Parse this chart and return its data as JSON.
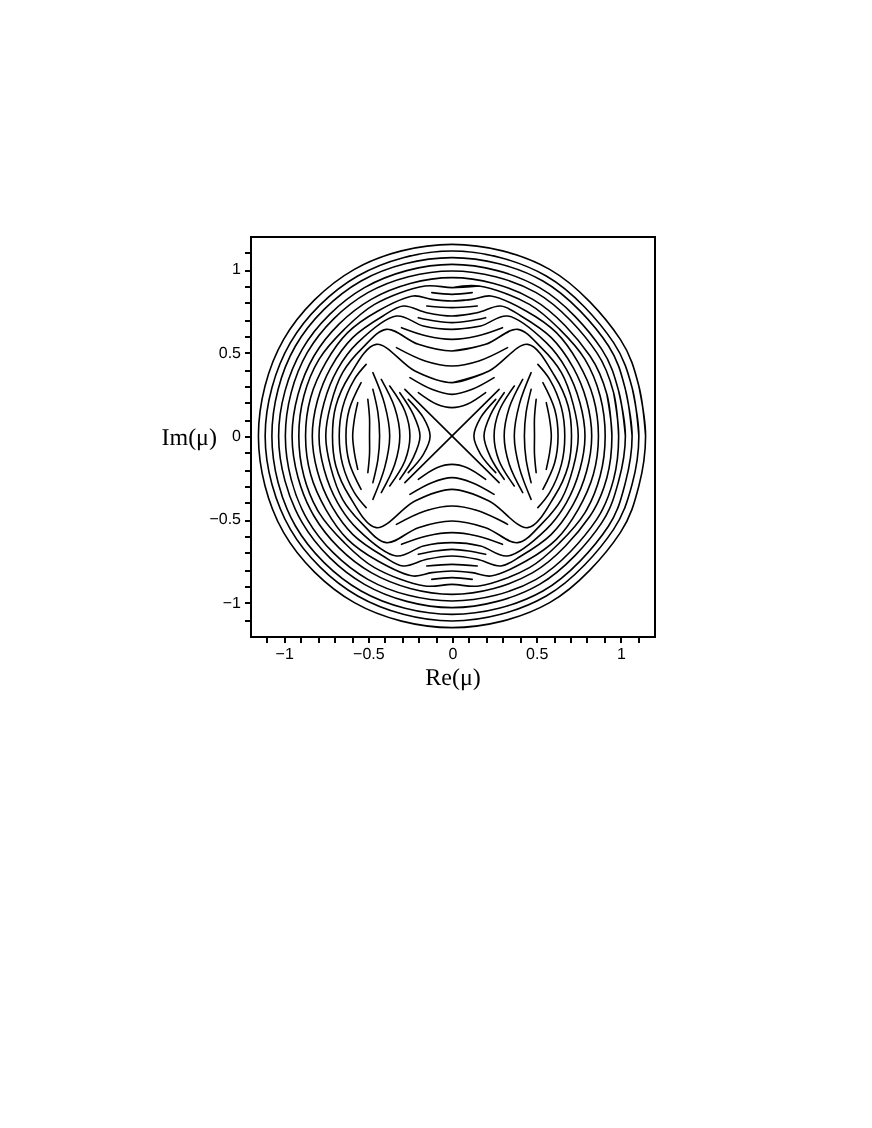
{
  "chart_data": {
    "type": "line",
    "xlabel": "Re(μ)",
    "ylabel": "Im(μ)",
    "xlim": [
      -1.2,
      1.2
    ],
    "ylim": [
      -1.2,
      1.2
    ],
    "xticks": [
      {
        "value": -1.1,
        "label": null
      },
      -1,
      {
        "value": -0.9,
        "label": null
      },
      {
        "value": -0.8,
        "label": null
      },
      {
        "value": -0.7,
        "label": null
      },
      {
        "value": -0.6,
        "label": null
      },
      -0.5,
      {
        "value": -0.4,
        "label": null
      },
      {
        "value": -0.3,
        "label": null
      },
      {
        "value": -0.2,
        "label": null
      },
      {
        "value": -0.1,
        "label": null
      },
      0,
      {
        "value": 0.1,
        "label": null
      },
      {
        "value": 0.2,
        "label": null
      },
      {
        "value": 0.3,
        "label": null
      },
      {
        "value": 0.4,
        "label": null
      },
      0.5,
      {
        "value": 0.6,
        "label": null
      },
      {
        "value": 0.7,
        "label": null
      },
      {
        "value": 0.8,
        "label": null
      },
      {
        "value": 0.9,
        "label": null
      },
      1,
      {
        "value": 1.1,
        "label": null
      }
    ],
    "yticks": [
      {
        "value": -1.1,
        "label": null
      },
      -1,
      {
        "value": -0.9,
        "label": null
      },
      {
        "value": -0.8,
        "label": null
      },
      {
        "value": -0.7,
        "label": null
      },
      {
        "value": -0.6,
        "label": null
      },
      -0.5,
      {
        "value": -0.4,
        "label": null
      },
      {
        "value": -0.3,
        "label": null
      },
      {
        "value": -0.2,
        "label": null
      },
      {
        "value": -0.1,
        "label": null
      },
      0,
      {
        "value": 0.1,
        "label": null
      },
      {
        "value": 0.2,
        "label": null
      },
      {
        "value": 0.3,
        "label": null
      },
      {
        "value": 0.4,
        "label": null
      },
      0.5,
      {
        "value": 0.6,
        "label": null
      },
      {
        "value": 0.7,
        "label": null
      },
      {
        "value": 0.8,
        "label": null
      },
      {
        "value": 0.9,
        "label": null
      },
      1,
      {
        "value": 1.1,
        "label": null
      }
    ],
    "series": [
      {
        "color": "#000000",
        "x": [
          0.95,
          0.92,
          0.82,
          0.48,
          0,
          -0.48,
          -0.82,
          -0.95,
          -0.82,
          -0.48,
          0,
          0.48,
          0.82,
          0.92,
          0.95,
          0.92
        ],
        "values": [
          0,
          0.25,
          0.48,
          0.82,
          0.95,
          0.82,
          0.48,
          0,
          -0.48,
          -0.82,
          -0.95,
          -0.82,
          -0.48,
          -0.25,
          0,
          0.25
        ]
      },
      {
        "color": "#000000",
        "x": [
          0.99,
          0.96,
          0.86,
          0.5,
          0,
          -0.5,
          -0.86,
          -0.99,
          -0.86,
          -0.5,
          0,
          0.5,
          0.86,
          0.96,
          0.99,
          0.96
        ],
        "values": [
          0,
          0.26,
          0.5,
          0.86,
          0.99,
          0.86,
          0.5,
          0,
          -0.5,
          -0.86,
          -0.99,
          -0.86,
          -0.5,
          -0.26,
          0,
          0.26
        ]
      },
      {
        "color": "#000000",
        "x": [
          1.03,
          0.99,
          0.89,
          0.52,
          0,
          -0.52,
          -0.89,
          -1.03,
          -0.89,
          -0.52,
          0,
          0.52,
          0.89,
          0.99,
          1.03,
          0.99
        ],
        "values": [
          0,
          0.27,
          0.52,
          0.89,
          1.03,
          0.89,
          0.52,
          0,
          -0.52,
          -0.89,
          -1.03,
          -0.89,
          -0.52,
          -0.27,
          0,
          0.27
        ]
      },
      {
        "color": "#000000",
        "x": [
          1.07,
          1.03,
          0.93,
          0.54,
          0,
          -0.54,
          -0.93,
          -1.07,
          -0.93,
          -0.54,
          0,
          0.54,
          0.93,
          1.03,
          1.07,
          1.03
        ],
        "values": [
          0,
          0.28,
          0.54,
          0.93,
          1.07,
          0.93,
          0.54,
          0,
          -0.54,
          -0.93,
          -1.07,
          -0.93,
          -0.54,
          -0.28,
          0,
          0.28
        ]
      },
      {
        "color": "#000000",
        "x": [
          1.11,
          1.07,
          0.96,
          0.56,
          0,
          -0.56,
          -0.96,
          -1.11,
          -0.96,
          -0.56,
          0,
          0.56,
          0.96,
          1.07,
          1.11,
          1.07
        ],
        "values": [
          0,
          0.29,
          0.56,
          0.96,
          1.11,
          0.96,
          0.56,
          0,
          -0.56,
          -0.96,
          -1.11,
          -0.96,
          -0.56,
          -0.29,
          0,
          0.29
        ]
      },
      {
        "color": "#000000",
        "x": [
          1.15,
          1.11,
          1,
          0.58,
          0,
          -0.58,
          -1,
          -1.15,
          -1,
          -0.58,
          0,
          0.58,
          1,
          1.11,
          1.15,
          1.11
        ],
        "values": [
          0,
          0.3,
          0.58,
          1,
          1.15,
          1,
          0.58,
          0,
          -0.58,
          -1,
          -1.15,
          -1,
          -0.58,
          -0.3,
          0,
          0.3
        ]
      },
      {
        "color": "#000000",
        "x": [
          0,
          0.16,
          0.46,
          0.64,
          0.79,
          0.88,
          0.91,
          0.88,
          0.79,
          0.64,
          0.46,
          0.16,
          0,
          -0.16,
          -0.46,
          -0.64,
          -0.79,
          -0.88,
          -0.91,
          -0.88,
          -0.79,
          -0.64,
          -0.46,
          -0.16,
          0,
          0.16
        ],
        "values": [
          0.89,
          0.9,
          0.79,
          0.64,
          0.46,
          0.24,
          0,
          -0.24,
          -0.46,
          -0.64,
          -0.79,
          -0.9,
          -0.89,
          -0.9,
          -0.79,
          -0.64,
          -0.46,
          -0.24,
          0,
          0.24,
          0.46,
          0.64,
          0.79,
          0.9,
          0.89,
          0.9
        ]
      },
      {
        "color": "#000000",
        "x": [
          0,
          0.12,
          0.23,
          0.44,
          0.62,
          0.75,
          0.84,
          0.87,
          0.84,
          0.75,
          0.62,
          0.44,
          0.23,
          0.12,
          0,
          -0.12,
          -0.23,
          -0.44,
          -0.62,
          -0.75,
          -0.84,
          -0.87,
          -0.84,
          -0.75,
          -0.62,
          -0.44,
          -0.23,
          -0.12,
          0,
          0.12
        ],
        "values": [
          0.81,
          0.82,
          0.84,
          0.75,
          0.62,
          0.44,
          0.23,
          0,
          -0.23,
          -0.44,
          -0.62,
          -0.75,
          -0.84,
          -0.82,
          -0.81,
          -0.82,
          -0.84,
          -0.75,
          -0.62,
          -0.44,
          -0.23,
          0,
          0.23,
          0.44,
          0.62,
          0.75,
          0.84,
          0.82,
          0.81,
          0.82
        ]
      },
      {
        "color": "#000000",
        "x": [
          0,
          0.15,
          0.29,
          0.41,
          0.59,
          0.72,
          0.8,
          0.83,
          0.8,
          0.72,
          0.59,
          0.41,
          0.29,
          0.15,
          0,
          -0.15,
          -0.29,
          -0.41,
          -0.59,
          -0.72,
          -0.8,
          -0.83,
          -0.8,
          -0.72,
          -0.59,
          -0.41,
          -0.29,
          -0.15,
          0,
          0.15
        ],
        "values": [
          0.72,
          0.74,
          0.78,
          0.72,
          0.59,
          0.41,
          0.21,
          0,
          -0.21,
          -0.41,
          -0.59,
          -0.72,
          -0.78,
          -0.74,
          -0.72,
          -0.74,
          -0.78,
          -0.72,
          -0.59,
          -0.41,
          -0.21,
          0,
          0.21,
          0.41,
          0.59,
          0.72,
          0.78,
          0.74,
          0.72,
          0.74
        ]
      },
      {
        "color": "#000000",
        "x": [
          0,
          0.17,
          0.33,
          0.56,
          0.68,
          0.76,
          0.79,
          0.76,
          0.68,
          0.56,
          0.33,
          0.17,
          0,
          -0.17,
          -0.33,
          -0.56,
          -0.68,
          -0.76,
          -0.79,
          -0.76,
          -0.68,
          -0.56,
          -0.33,
          -0.17,
          0,
          0.17
        ],
        "values": [
          0.64,
          0.66,
          0.72,
          0.56,
          0.4,
          0.2,
          0,
          -0.2,
          -0.4,
          -0.56,
          -0.72,
          -0.66,
          -0.64,
          -0.66,
          -0.72,
          -0.56,
          -0.4,
          -0.2,
          0,
          0.2,
          0.4,
          0.56,
          0.72,
          0.66,
          0.64,
          0.66
        ]
      },
      {
        "color": "#000000",
        "x": [
          0,
          0.2,
          0.39,
          0.53,
          0.65,
          0.72,
          0.75,
          0.72,
          0.65,
          0.53,
          0.39,
          0.2,
          0,
          -0.2,
          -0.39,
          -0.53,
          -0.65,
          -0.72,
          -0.75,
          -0.72,
          -0.65,
          -0.53,
          -0.39,
          -0.2,
          0,
          0.2
        ],
        "values": [
          0.51,
          0.55,
          0.64,
          0.53,
          0.38,
          0.19,
          0,
          -0.19,
          -0.38,
          -0.53,
          -0.64,
          -0.55,
          -0.51,
          -0.55,
          -0.64,
          -0.53,
          -0.38,
          -0.19,
          0,
          0.19,
          0.38,
          0.53,
          0.64,
          0.55,
          0.51,
          0.55
        ]
      },
      {
        "color": "#000000",
        "x": [
          0,
          0.22,
          0.45,
          0.61,
          0.69,
          0.71,
          0.69,
          0.61,
          0.45,
          0.22,
          0,
          -0.22,
          -0.45,
          -0.61,
          -0.69,
          -0.71,
          -0.69,
          -0.61,
          -0.45,
          -0.22,
          0,
          0.22
        ],
        "values": [
          0.32,
          0.39,
          0.55,
          0.36,
          0.18,
          0,
          -0.18,
          -0.36,
          -0.55,
          -0.39,
          -0.32,
          -0.39,
          -0.55,
          -0.36,
          -0.18,
          0,
          0.18,
          0.36,
          0.55,
          0.39,
          0.32,
          0.39
        ]
      },
      {
        "color": "#000000",
        "x": [
          0.51,
          0.58,
          0.65,
          0.67,
          0.65,
          0.58,
          0.51
        ],
        "values": [
          -0.43,
          -0.34,
          -0.17,
          0,
          0.17,
          0.34,
          0.43
        ]
      },
      {
        "color": "#000000",
        "x": [
          -0.51,
          -0.58,
          -0.65,
          -0.67,
          -0.65,
          -0.58,
          -0.51
        ],
        "values": [
          -0.43,
          -0.34,
          -0.17,
          0,
          0.17,
          0.34,
          0.43
        ]
      },
      {
        "color": "#000000",
        "x": [
          0.54,
          0.61,
          0.63,
          0.61,
          0.54
        ],
        "values": [
          -0.32,
          -0.16,
          0,
          0.16,
          0.32
        ]
      },
      {
        "color": "#000000",
        "x": [
          -0.54,
          -0.61,
          -0.63,
          -0.61,
          -0.54
        ],
        "values": [
          -0.32,
          -0.16,
          0,
          0.16,
          0.32
        ]
      },
      {
        "color": "#000000",
        "x": [
          0.56,
          0.58,
          0.59,
          0.58,
          0.56
        ],
        "values": [
          -0.2,
          -0.1,
          0,
          0.1,
          0.2
        ]
      },
      {
        "color": "#000000",
        "x": [
          -0.56,
          -0.58,
          -0.59,
          -0.58,
          -0.56
        ],
        "values": [
          -0.2,
          -0.1,
          0,
          0.1,
          0.2
        ]
      },
      {
        "color": "#000000",
        "x": [
          -0.2,
          -0.09,
          0,
          0.09,
          0.2
        ],
        "values": [
          0.26,
          0.19,
          0.17,
          0.19,
          0.26
        ]
      },
      {
        "color": "#000000",
        "x": [
          -0.25,
          -0.12,
          0,
          0.12,
          0.25
        ],
        "values": [
          0.35,
          0.28,
          0.25,
          0.28,
          0.35
        ]
      },
      {
        "color": "#000000",
        "x": [
          -0.33,
          -0.16,
          0,
          0.16,
          0.33
        ],
        "values": [
          0.53,
          0.45,
          0.42,
          0.45,
          0.53
        ]
      },
      {
        "color": "#000000",
        "x": [
          -0.3,
          -0.15,
          0,
          0.15,
          0.3
        ],
        "values": [
          0.65,
          0.6,
          0.58,
          0.6,
          0.65
        ]
      },
      {
        "color": "#000000",
        "x": [
          -0.2,
          -0.1,
          0,
          0.1,
          0.2
        ],
        "values": [
          0.71,
          0.69,
          0.68,
          0.69,
          0.71
        ]
      },
      {
        "color": "#000000",
        "x": [
          -0.15,
          0,
          0.15
        ],
        "values": [
          0.78,
          0.77,
          0.78
        ]
      },
      {
        "color": "#000000",
        "x": [
          -0.12,
          0,
          0.12
        ],
        "values": [
          0.86,
          0.85,
          0.86
        ]
      },
      {
        "color": "#000000",
        "x": [
          -0.2,
          -0.09,
          0,
          0.09,
          0.2
        ],
        "values": [
          -0.26,
          -0.19,
          -0.17,
          -0.19,
          -0.26
        ]
      },
      {
        "color": "#000000",
        "x": [
          -0.25,
          -0.12,
          0,
          0.12,
          0.25
        ],
        "values": [
          -0.35,
          -0.28,
          -0.25,
          -0.28,
          -0.35
        ]
      },
      {
        "color": "#000000",
        "x": [
          -0.33,
          -0.16,
          0,
          0.16,
          0.33
        ],
        "values": [
          -0.53,
          -0.45,
          -0.42,
          -0.45,
          -0.53
        ]
      },
      {
        "color": "#000000",
        "x": [
          -0.3,
          -0.15,
          0,
          0.15,
          0.3
        ],
        "values": [
          -0.65,
          -0.6,
          -0.58,
          -0.6,
          -0.65
        ]
      },
      {
        "color": "#000000",
        "x": [
          -0.2,
          -0.1,
          0,
          0.1,
          0.2
        ],
        "values": [
          -0.71,
          -0.69,
          -0.68,
          -0.69,
          -0.71
        ]
      },
      {
        "color": "#000000",
        "x": [
          -0.15,
          0,
          0.15
        ],
        "values": [
          -0.78,
          -0.77,
          -0.78
        ]
      },
      {
        "color": "#000000",
        "x": [
          -0.12,
          0,
          0.12
        ],
        "values": [
          -0.86,
          -0.85,
          -0.86
        ]
      },
      {
        "color": "#000000",
        "x": [
          -0.26,
          -0.17,
          -0.13,
          -0.17,
          -0.26
        ],
        "values": [
          -0.22,
          -0.11,
          0,
          0.11,
          0.22
        ]
      },
      {
        "color": "#000000",
        "x": [
          -0.31,
          -0.23,
          -0.19,
          -0.23,
          -0.31
        ],
        "values": [
          -0.26,
          -0.13,
          0,
          0.13,
          0.26
        ]
      },
      {
        "color": "#000000",
        "x": [
          -0.37,
          -0.28,
          -0.25,
          -0.28,
          -0.37
        ],
        "values": [
          -0.3,
          -0.15,
          0,
          0.15,
          0.3
        ]
      },
      {
        "color": "#000000",
        "x": [
          -0.42,
          -0.34,
          -0.31,
          -0.34,
          -0.42
        ],
        "values": [
          -0.34,
          -0.17,
          0,
          0.17,
          0.34
        ]
      },
      {
        "color": "#000000",
        "x": [
          -0.47,
          -0.4,
          -0.37,
          -0.4,
          -0.47
        ],
        "values": [
          -0.38,
          -0.19,
          0,
          0.19,
          0.38
        ]
      },
      {
        "color": "#000000",
        "x": [
          -0.47,
          -0.44,
          -0.43,
          -0.44,
          -0.47
        ],
        "values": [
          -0.28,
          -0.14,
          0,
          0.14,
          0.28
        ]
      },
      {
        "color": "#000000",
        "x": [
          -0.5,
          -0.49,
          -0.49,
          -0.49,
          -0.5
        ],
        "values": [
          -0.22,
          -0.11,
          0,
          0.11,
          0.22
        ]
      },
      {
        "color": "#000000",
        "x": [
          0.26,
          0.17,
          0.13,
          0.17,
          0.26
        ],
        "values": [
          -0.22,
          -0.11,
          0,
          0.11,
          0.22
        ]
      },
      {
        "color": "#000000",
        "x": [
          0.31,
          0.23,
          0.19,
          0.23,
          0.31
        ],
        "values": [
          -0.26,
          -0.13,
          0,
          0.13,
          0.26
        ]
      },
      {
        "color": "#000000",
        "x": [
          0.37,
          0.28,
          0.25,
          0.28,
          0.37
        ],
        "values": [
          -0.3,
          -0.15,
          0,
          0.15,
          0.3
        ]
      },
      {
        "color": "#000000",
        "x": [
          0.42,
          0.34,
          0.31,
          0.34,
          0.42
        ],
        "values": [
          -0.34,
          -0.17,
          0,
          0.17,
          0.34
        ]
      },
      {
        "color": "#000000",
        "x": [
          0.47,
          0.4,
          0.37,
          0.4,
          0.47
        ],
        "values": [
          -0.38,
          -0.19,
          0,
          0.19,
          0.38
        ]
      },
      {
        "color": "#000000",
        "x": [
          0.47,
          0.44,
          0.43,
          0.44,
          0.47
        ],
        "values": [
          -0.28,
          -0.14,
          0,
          0.14,
          0.28
        ]
      },
      {
        "color": "#000000",
        "x": [
          0.5,
          0.49,
          0.49,
          0.49,
          0.5
        ],
        "values": [
          -0.22,
          -0.11,
          0,
          0.11,
          0.22
        ]
      },
      {
        "color": "#000000",
        "x": [
          -0.28,
          0.28
        ],
        "values": [
          -0.28,
          0.28
        ]
      },
      {
        "color": "#000000",
        "x": [
          -0.28,
          0.28
        ],
        "values": [
          0.28,
          -0.28
        ]
      }
    ]
  }
}
